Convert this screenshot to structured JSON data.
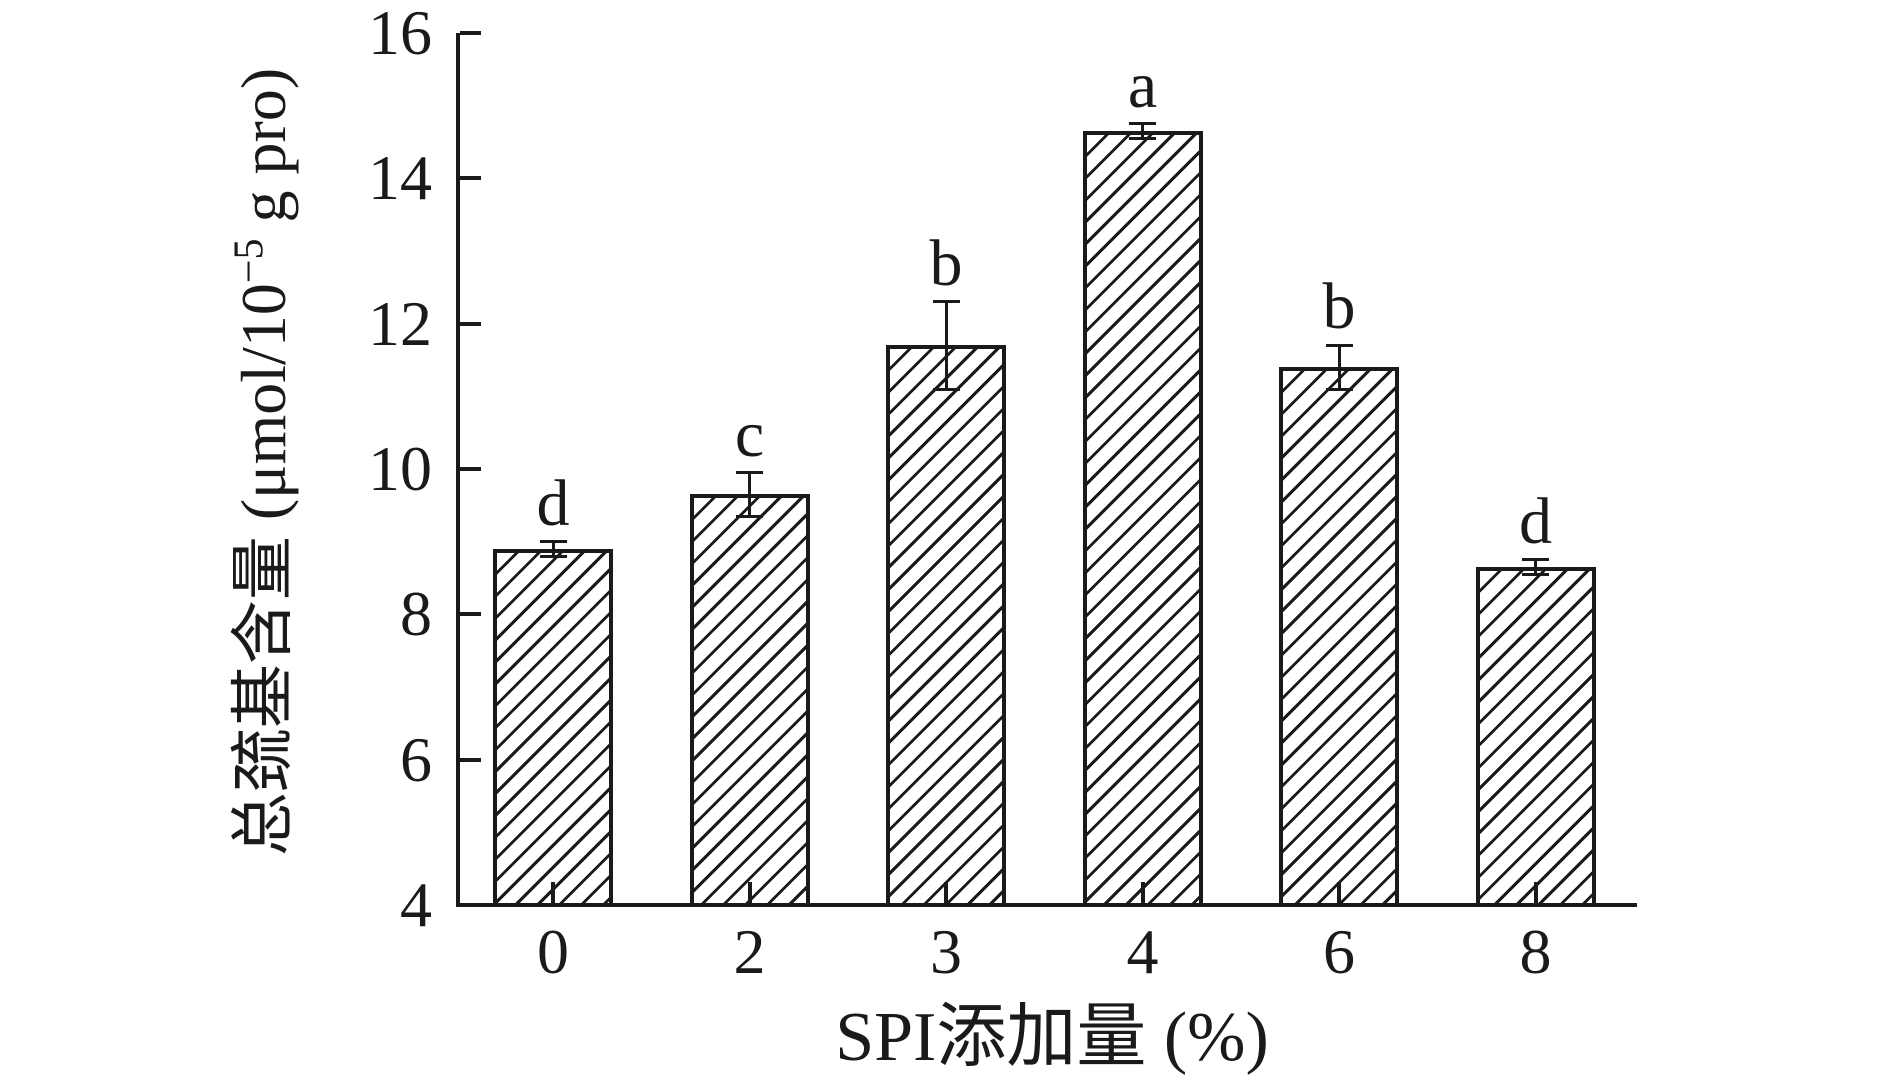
{
  "figure": {
    "background": "#ffffff",
    "ink_color": "#1a1a1a",
    "bar_fill": "#ffffff",
    "bar_hatch": "diagonal-forward-slash"
  },
  "chart_data": {
    "type": "bar",
    "title": "",
    "xlabel": "SPI添加量 (%)",
    "ylabel": "总巯基含量 (μmol/10−5 g pro)",
    "ylabel_parts": {
      "prefix": "总巯基含量 (μmol/10",
      "sup": "−5",
      "suffix": " g pro)"
    },
    "categories": [
      "0",
      "2",
      "3",
      "4",
      "6",
      "8"
    ],
    "values": [
      8.9,
      9.65,
      11.7,
      14.65,
      11.4,
      8.65
    ],
    "errors": [
      0.1,
      0.3,
      0.6,
      0.1,
      0.3,
      0.1
    ],
    "sig_letters": [
      "d",
      "c",
      "b",
      "a",
      "b",
      "d"
    ],
    "ylim": [
      4,
      16
    ],
    "yticks": [
      4,
      6,
      8,
      10,
      12,
      14,
      16
    ],
    "grid": false,
    "legend": null,
    "error_bar_style": "symmetric-caps",
    "tick_direction": "inside"
  }
}
